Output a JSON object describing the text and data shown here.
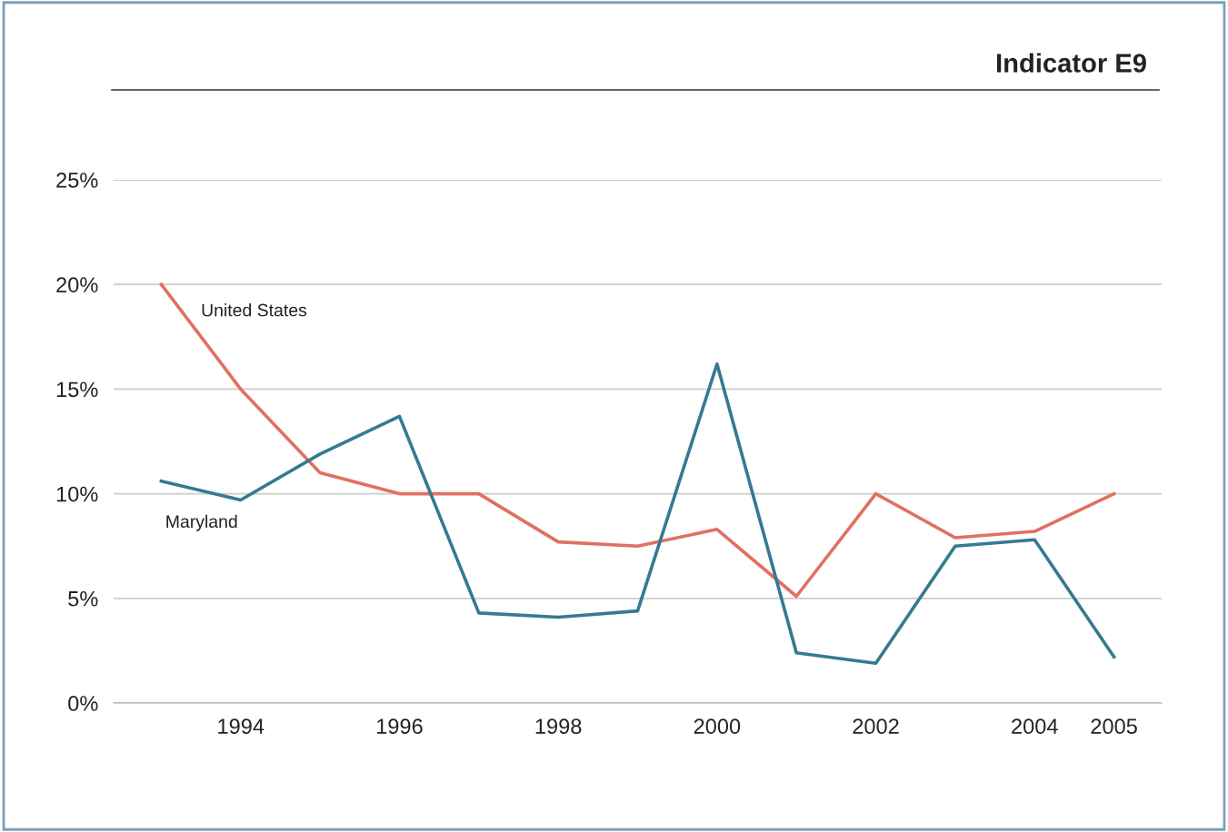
{
  "chart_data": {
    "type": "line",
    "title": "Indicator E9",
    "x": [
      1993,
      1994,
      1995,
      1996,
      1997,
      1998,
      1999,
      2000,
      2001,
      2002,
      2003,
      2004,
      2005
    ],
    "series": [
      {
        "name": "United States",
        "color": "#e07060",
        "values": [
          20,
          15,
          11,
          10,
          10,
          7.7,
          7.5,
          8.3,
          5.1,
          10,
          7.9,
          8.2,
          10
        ]
      },
      {
        "name": "Maryland",
        "color": "#357a91",
        "values": [
          10.6,
          9.7,
          11.9,
          13.7,
          4.3,
          4.1,
          4.4,
          16.2,
          2.4,
          1.9,
          7.5,
          7.8,
          2.2
        ]
      }
    ],
    "xlim": [
      1992.4,
      2005.6
    ],
    "xticks": [
      1994,
      1996,
      1998,
      2000,
      2002,
      2004,
      2005
    ],
    "ylim": [
      0,
      25
    ],
    "yticks": [
      {
        "value": 0,
        "label": "0%"
      },
      {
        "value": 5,
        "label": "5%"
      },
      {
        "value": 10,
        "label": "10%"
      },
      {
        "value": 15,
        "label": "15%"
      },
      {
        "value": 20,
        "label": "20%"
      },
      {
        "value": 25,
        "label": "25%"
      }
    ],
    "grid": "y",
    "legend": false,
    "marker": "none",
    "line_style": "solid"
  }
}
